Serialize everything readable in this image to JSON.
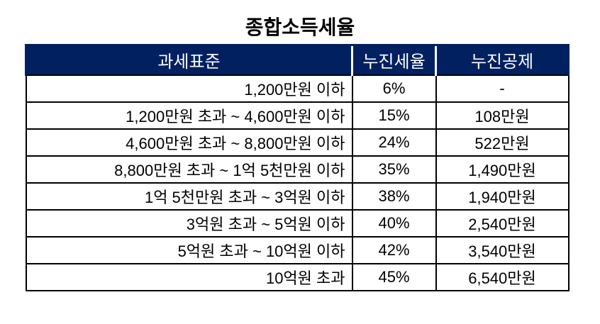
{
  "title": "종합소득세율",
  "colors": {
    "header_bg": "#002060",
    "header_text": "#ffffff",
    "body_text": "#000000",
    "border": "#000000",
    "background": "#ffffff"
  },
  "chart_data": {
    "type": "table",
    "title": "종합소득세율",
    "columns": [
      "과세표준",
      "누진세율",
      "누진공제"
    ],
    "rows": [
      [
        "1,200만원 이하",
        "6%",
        "-"
      ],
      [
        "1,200만원 초과 ~ 4,600만원 이하",
        "15%",
        "108만원"
      ],
      [
        "4,600만원 초과 ~ 8,800만원 이하",
        "24%",
        "522만원"
      ],
      [
        "8,800만원 초과 ~ 1억 5천만원 이하",
        "35%",
        "1,490만원"
      ],
      [
        "1억 5천만원 초과 ~ 3억원 이하",
        "38%",
        "1,940만원"
      ],
      [
        "3억원 초과 ~ 5억원 이하",
        "40%",
        "2,540만원"
      ],
      [
        "5억원 초과 ~ 10억원 이하",
        "42%",
        "3,540만원"
      ],
      [
        "10억원 초과",
        "45%",
        "6,540만원"
      ]
    ]
  }
}
